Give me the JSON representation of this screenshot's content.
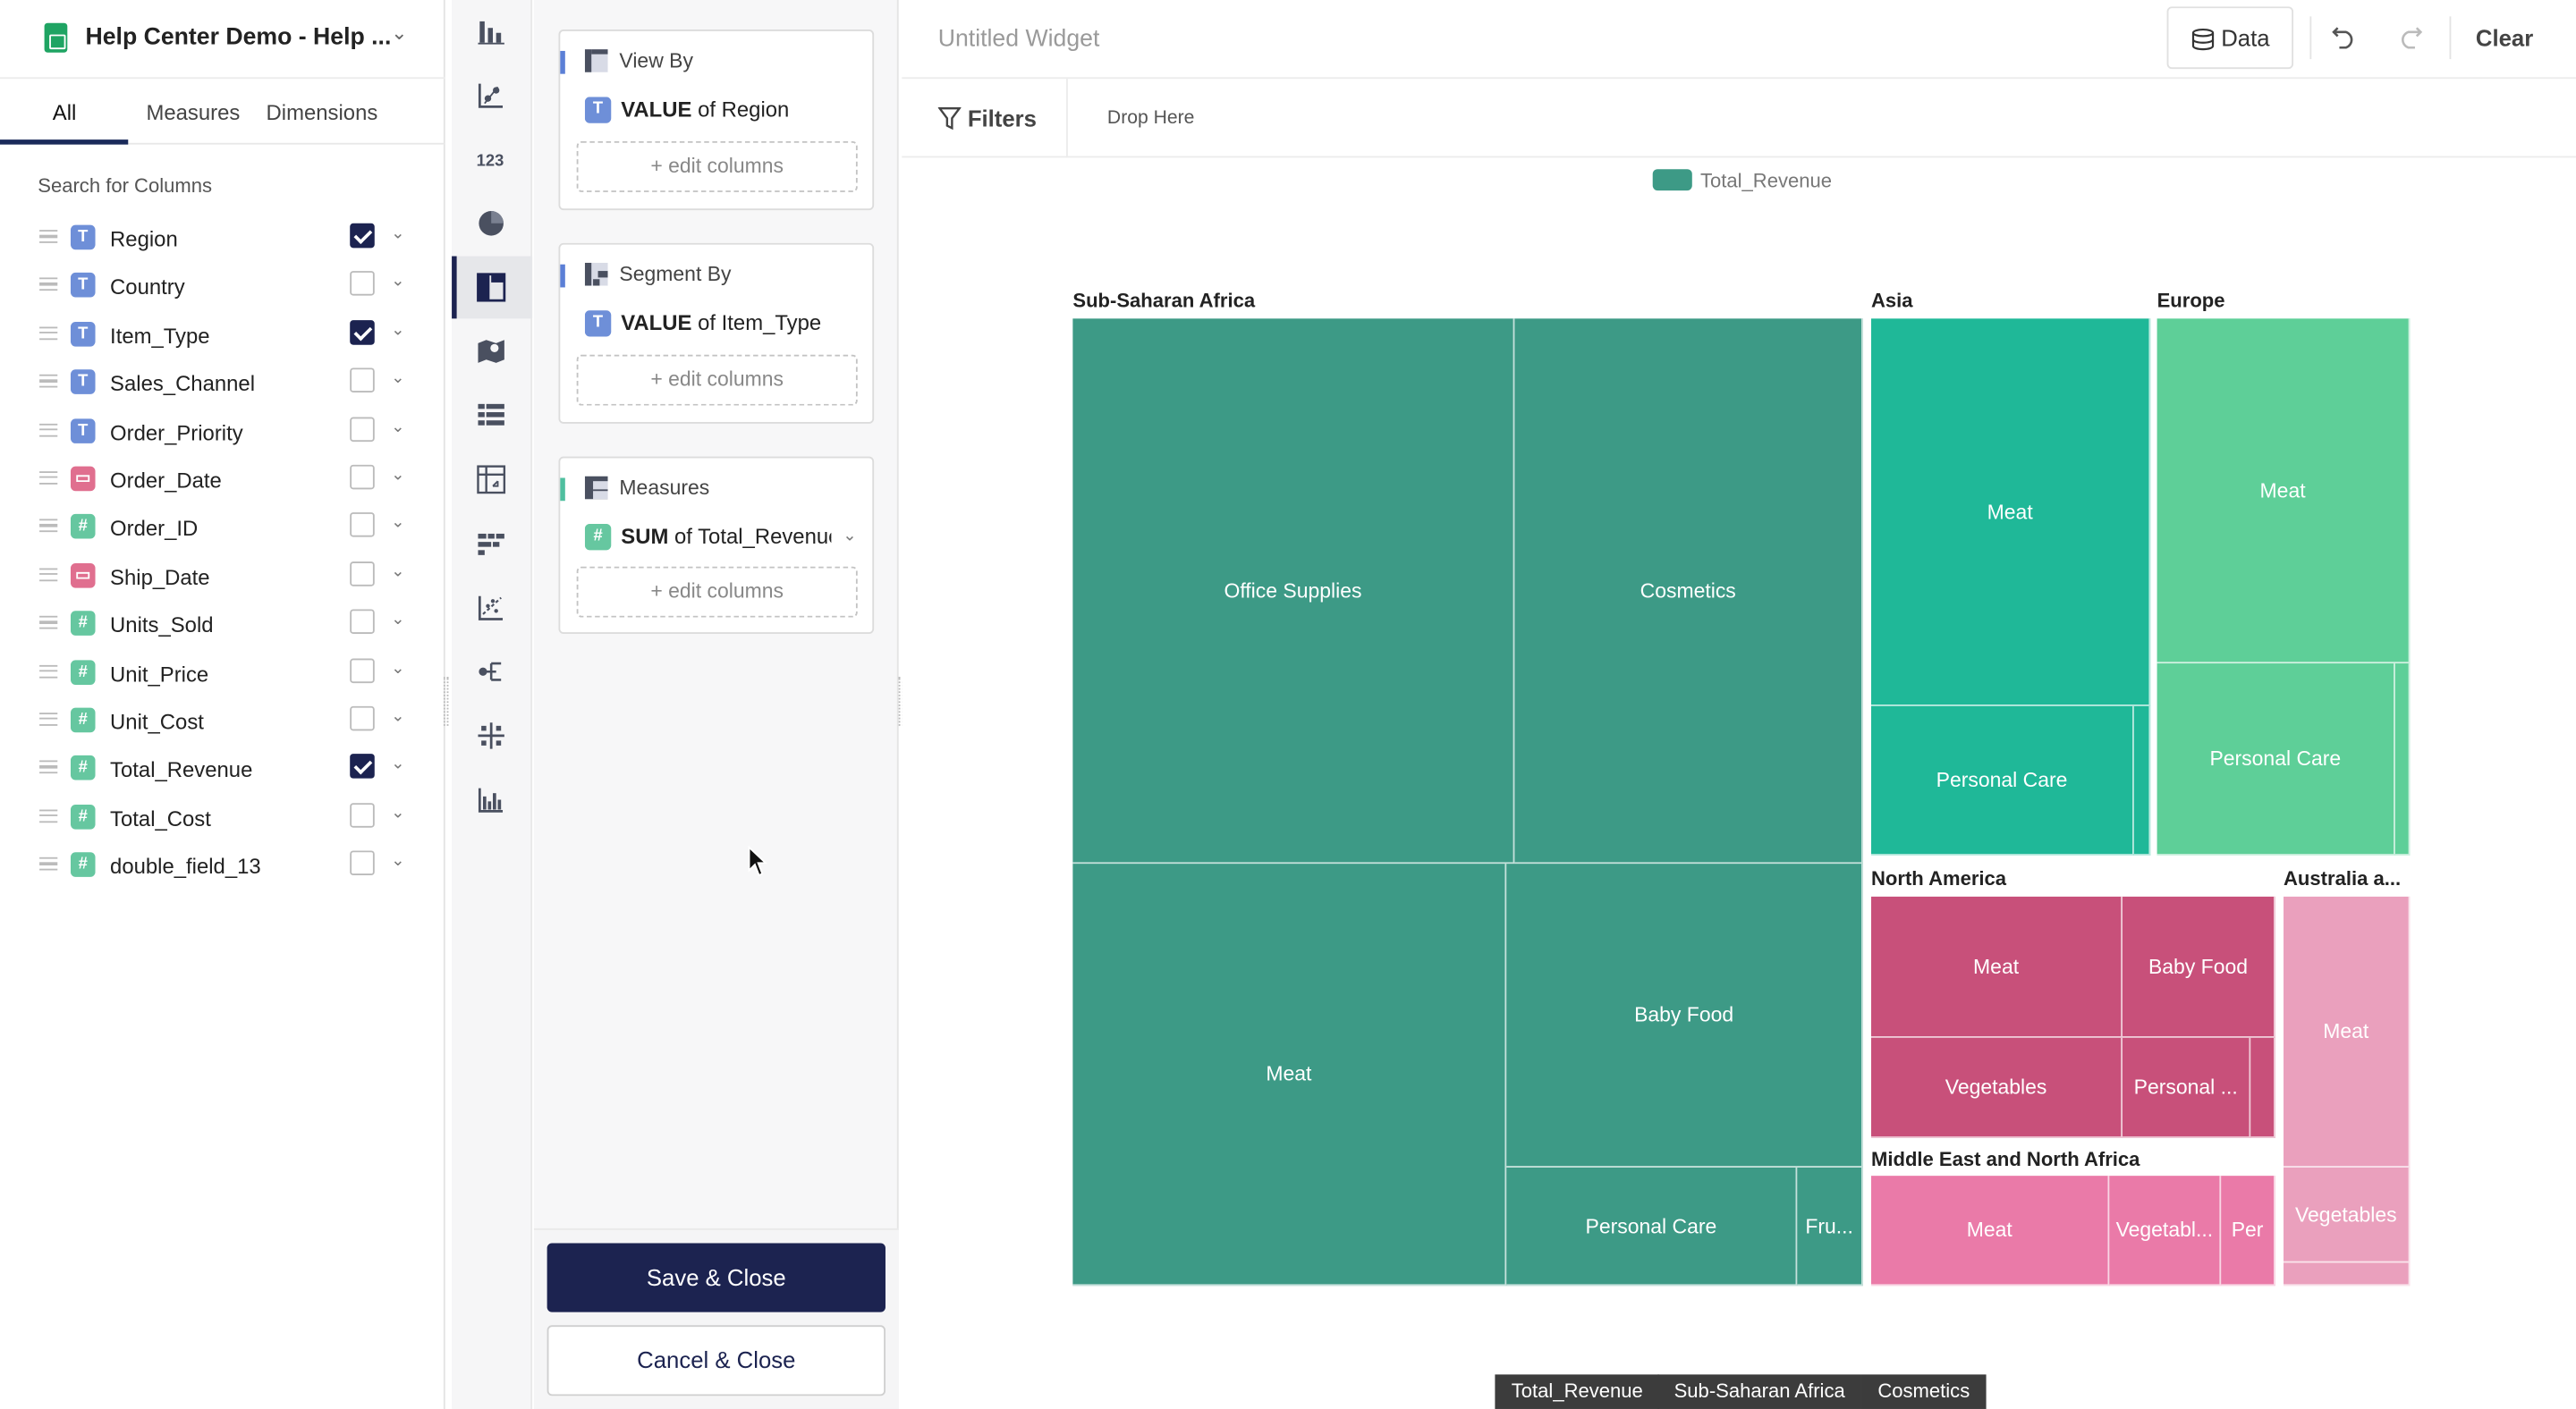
{
  "sheet": {
    "name": "Help Center Demo - Help ..."
  },
  "tabs": {
    "all": "All",
    "measures": "Measures",
    "dimensions": "Dimensions"
  },
  "search_label": "Search for Columns",
  "columns": [
    {
      "name": "Region",
      "type": "T",
      "checked": true
    },
    {
      "name": "Country",
      "type": "T",
      "checked": false
    },
    {
      "name": "Item_Type",
      "type": "T",
      "checked": true
    },
    {
      "name": "Sales_Channel",
      "type": "T",
      "checked": false
    },
    {
      "name": "Order_Priority",
      "type": "T",
      "checked": false
    },
    {
      "name": "Order_Date",
      "type": "date",
      "checked": false
    },
    {
      "name": "Order_ID",
      "type": "#",
      "checked": false
    },
    {
      "name": "Ship_Date",
      "type": "date",
      "checked": false
    },
    {
      "name": "Units_Sold",
      "type": "#",
      "checked": false
    },
    {
      "name": "Unit_Price",
      "type": "#",
      "checked": false
    },
    {
      "name": "Unit_Cost",
      "type": "#",
      "checked": false
    },
    {
      "name": "Total_Revenue",
      "type": "#",
      "checked": true
    },
    {
      "name": "Total_Cost",
      "type": "#",
      "checked": false
    },
    {
      "name": "double_field_13",
      "type": "#",
      "checked": false
    }
  ],
  "chart_tools": [
    "bar-chart-icon",
    "scatter-icon",
    "number-icon",
    "pie-icon",
    "treemap-icon",
    "map-icon",
    "table-icon",
    "pivot-icon",
    "funnel-icon",
    "trend-icon",
    "flow-icon",
    "sparkle-icon",
    "histogram-icon"
  ],
  "config": {
    "view_by": {
      "title": "View By",
      "agg": "VALUE",
      "of": "of Region",
      "edit": "+ edit columns",
      "accent": "#5b7fd6"
    },
    "segment_by": {
      "title": "Segment By",
      "agg": "VALUE",
      "of": "of Item_Type",
      "edit": "+ edit columns",
      "accent": "#5b7fd6"
    },
    "measures": {
      "title": "Measures",
      "agg": "SUM",
      "of": "of Total_Revenue",
      "edit": "+ edit columns",
      "accent": "#4fbf9f"
    }
  },
  "buttons": {
    "save": "Save & Close",
    "cancel": "Cancel & Close"
  },
  "main": {
    "widget_title": "Untitled Widget",
    "data_button": "Data",
    "clear_button": "Clear",
    "filters_label": "Filters",
    "drop_here": "Drop Here",
    "legend": "Total_Revenue"
  },
  "chart_data": {
    "type": "treemap",
    "measure": "Total_Revenue",
    "groups": [
      {
        "name": "Sub-Saharan Africa",
        "color": "#3d9a86",
        "cells": [
          "Office Supplies",
          "Cosmetics",
          "Meat",
          "Baby Food",
          "Personal Care",
          "Fru..."
        ]
      },
      {
        "name": "Asia",
        "color": "#1fb898",
        "cells": [
          "Meat",
          "Personal Care"
        ]
      },
      {
        "name": "Europe",
        "color": "#5ecf98",
        "cells": [
          "Meat",
          "Personal Care"
        ]
      },
      {
        "name": "North America",
        "color": "#c8507a",
        "cells": [
          "Meat",
          "Baby Food",
          "Vegetables",
          "Personal ..."
        ]
      },
      {
        "name": "Australia a...",
        "color": "#eaa0bd",
        "cells": [
          "Meat",
          "Vegetables"
        ]
      },
      {
        "name": "Middle East and North Africa",
        "color": "#ea7aa8",
        "cells": [
          "Meat",
          "Vegetabl...",
          "Per"
        ]
      }
    ]
  },
  "breadcrumbs": [
    "Total_Revenue",
    "Sub-Saharan Africa",
    "Cosmetics"
  ]
}
